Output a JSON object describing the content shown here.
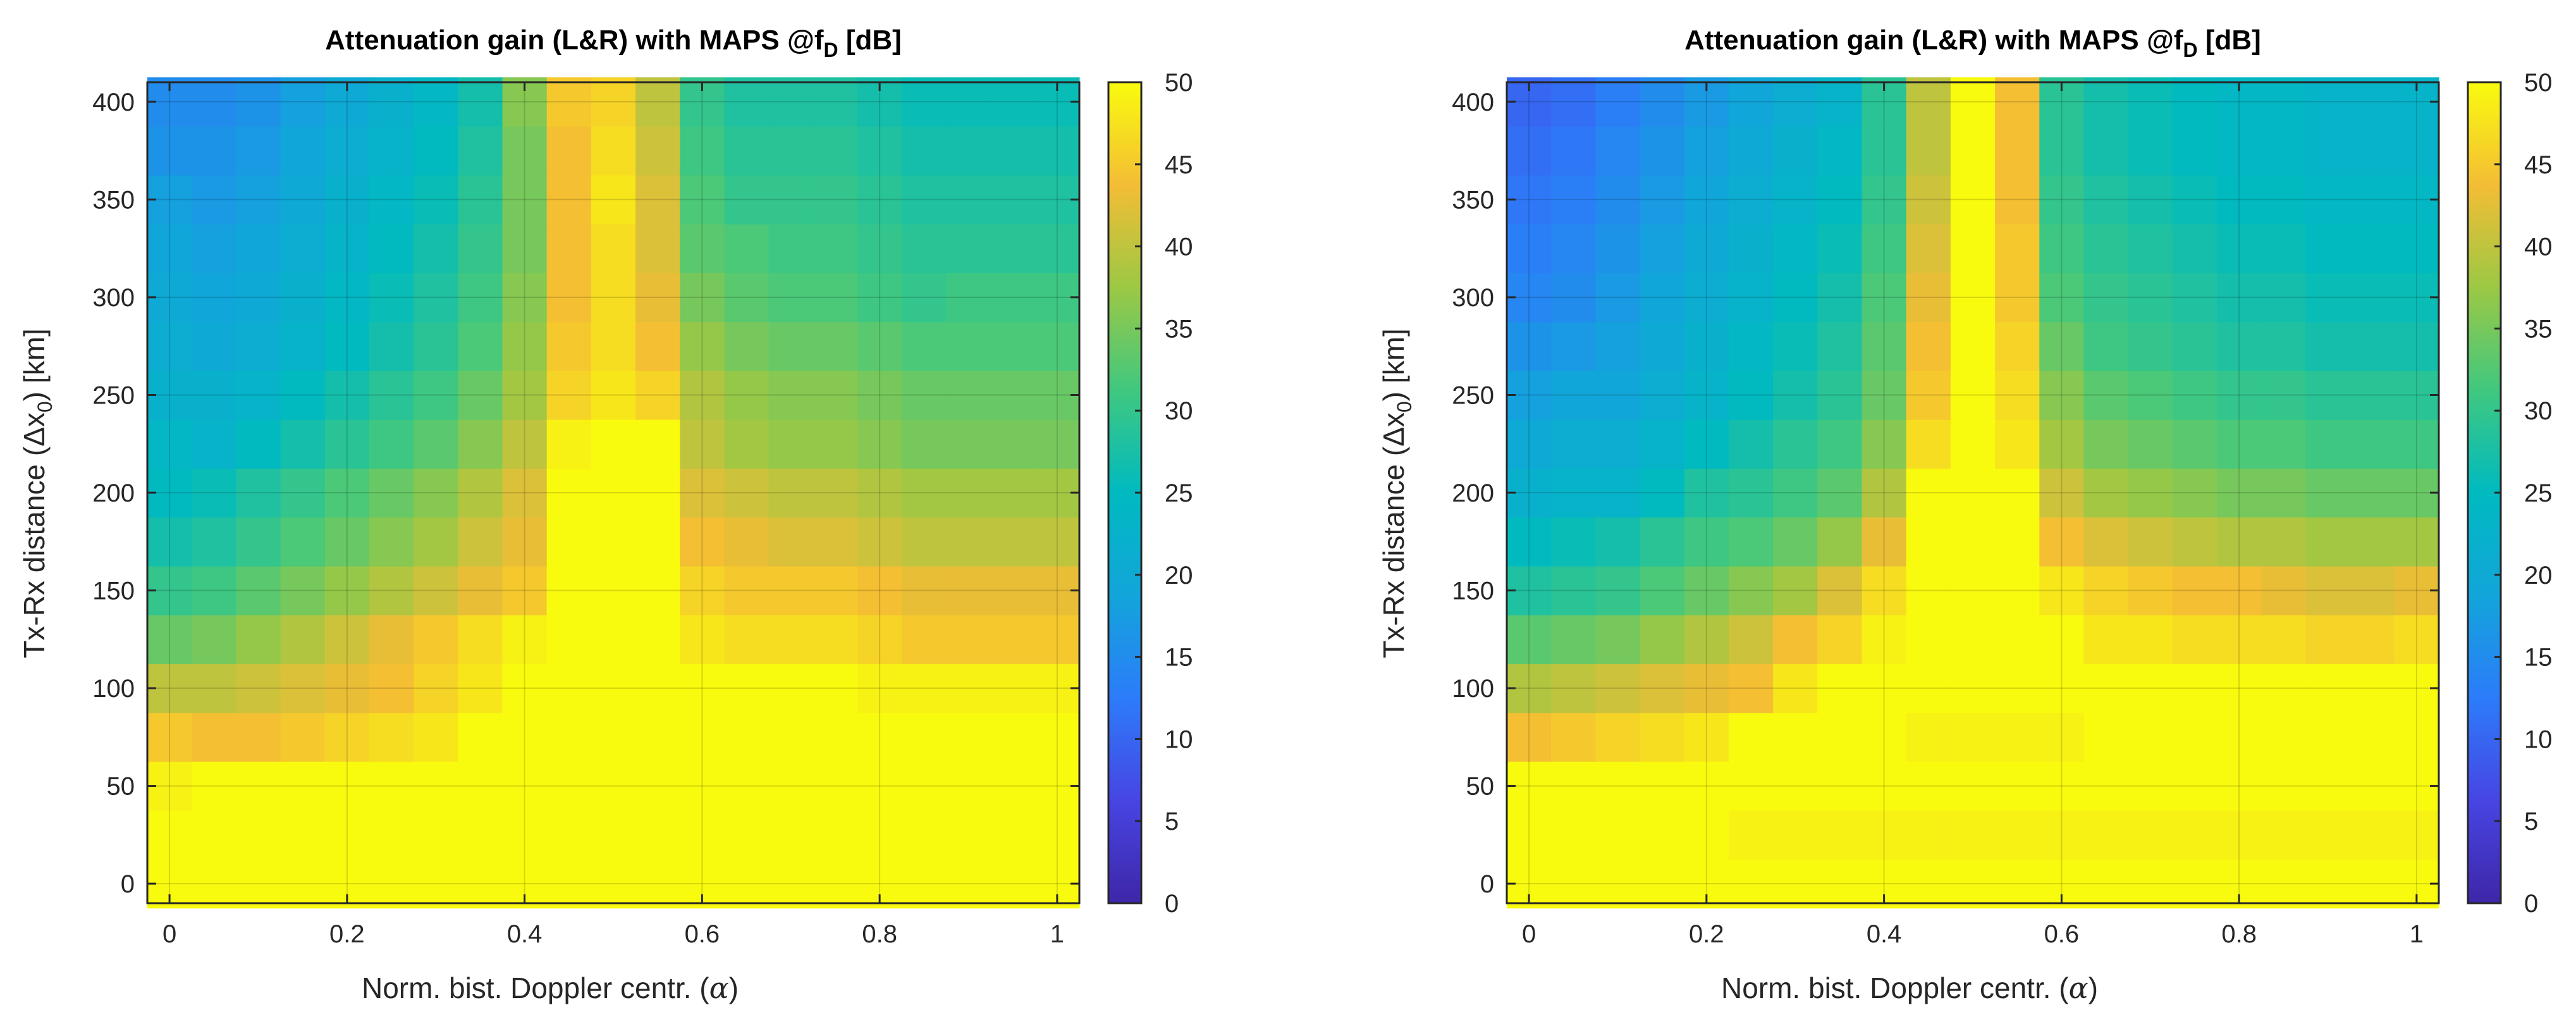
{
  "chart_data": [
    {
      "type": "heatmap",
      "title_main": "Attenuation gain (L&R) with MAPS @f",
      "title_sub": "D",
      "title_tail": " [dB]",
      "xlabel_text": "Norm. bist. Doppler centr. (",
      "xlabel_sym": "α",
      "xlabel_close": ")",
      "ylabel_text": "Tx-Rx distance (Δx",
      "ylabel_sub": "0",
      "ylabel_close": ") [km]",
      "xticks": [
        0,
        0.2,
        0.4,
        0.6,
        0.8,
        1
      ],
      "xtick_labels": [
        "0",
        "0.2",
        "0.4",
        "0.6",
        "0.8",
        "1"
      ],
      "yticks": [
        0,
        50,
        100,
        150,
        200,
        250,
        300,
        350,
        400
      ],
      "ytick_labels": [
        "0",
        "50",
        "100",
        "150",
        "200",
        "250",
        "300",
        "350",
        "400"
      ],
      "xlim": [
        -0.025,
        1.025
      ],
      "ylim": [
        -10,
        410
      ],
      "x_step": 0.05,
      "y_step": 25,
      "colorbar_ticks": [
        "0",
        "5",
        "10",
        "15",
        "20",
        "25",
        "30",
        "35",
        "40",
        "45",
        "50"
      ],
      "clim": [
        0,
        50
      ],
      "grid": true,
      "colormap": "parula",
      "values_rows_y_ascending": [
        [
          50,
          50,
          50,
          50,
          50,
          50,
          50,
          50,
          50,
          50,
          50,
          50,
          50,
          50,
          50,
          50,
          50,
          50,
          50,
          50,
          50
        ],
        [
          50,
          50,
          50,
          50,
          50,
          50,
          50,
          50,
          50,
          50,
          50,
          50,
          50,
          50,
          50,
          50,
          50,
          50,
          50,
          50,
          50
        ],
        [
          49,
          50,
          50,
          50,
          50,
          50,
          50,
          50,
          50,
          50,
          50,
          50,
          50,
          50,
          50,
          50,
          50,
          50,
          50,
          50,
          50
        ],
        [
          45,
          44,
          44,
          45,
          46,
          47,
          48,
          50,
          50,
          50,
          50,
          50,
          50,
          50,
          50,
          50,
          50,
          50,
          50,
          50,
          50
        ],
        [
          40,
          40,
          41,
          42,
          43,
          44,
          46,
          48,
          50,
          50,
          50,
          50,
          50,
          50,
          50,
          50,
          49,
          49,
          49,
          49,
          49
        ],
        [
          34,
          35,
          37,
          39,
          41,
          43,
          45,
          47,
          49,
          50,
          50,
          50,
          48,
          47,
          47,
          47,
          46,
          45,
          45,
          45,
          45
        ],
        [
          30,
          31,
          33,
          35,
          37,
          39,
          41,
          43,
          45,
          50,
          50,
          50,
          46,
          45,
          45,
          45,
          44,
          43,
          43,
          43,
          43
        ],
        [
          27,
          28,
          30,
          32,
          34,
          36,
          38,
          41,
          43,
          50,
          50,
          50,
          44,
          43,
          42,
          42,
          41,
          40,
          40,
          40,
          40
        ],
        [
          25,
          26,
          28,
          30,
          32,
          34,
          36,
          39,
          42,
          50,
          50,
          50,
          42,
          41,
          40,
          40,
          39,
          38,
          38,
          38,
          38
        ],
        [
          24,
          23,
          25,
          27,
          29,
          31,
          33,
          36,
          40,
          49,
          50,
          50,
          40,
          38,
          37,
          37,
          36,
          35,
          35,
          35,
          35
        ],
        [
          22,
          22,
          23,
          25,
          27,
          29,
          31,
          34,
          38,
          46,
          48,
          46,
          39,
          37,
          36,
          36,
          35,
          34,
          34,
          34,
          34
        ],
        [
          21,
          20,
          21,
          23,
          25,
          27,
          29,
          32,
          37,
          45,
          47,
          44,
          37,
          35,
          34,
          34,
          33,
          32,
          32,
          32,
          32
        ],
        [
          20,
          19,
          20,
          22,
          24,
          26,
          28,
          31,
          36,
          44,
          47,
          43,
          35,
          33,
          32,
          32,
          31,
          30,
          31,
          31,
          31
        ],
        [
          19,
          18,
          19,
          21,
          23,
          25,
          27,
          30,
          35,
          44,
          47,
          42,
          33,
          32,
          31,
          31,
          30,
          29,
          29,
          29,
          29
        ],
        [
          18,
          17,
          18,
          20,
          22,
          24,
          26,
          29,
          35,
          44,
          48,
          42,
          32,
          30,
          30,
          30,
          29,
          28,
          28,
          28,
          28
        ],
        [
          16,
          16,
          17,
          19,
          21,
          23,
          25,
          28,
          35,
          44,
          47,
          41,
          31,
          29,
          29,
          29,
          28,
          27,
          27,
          27,
          27
        ],
        [
          15,
          15,
          16,
          18,
          20,
          22,
          24,
          27,
          36,
          45,
          46,
          40,
          30,
          28,
          28,
          28,
          27,
          26,
          26,
          26,
          26
        ]
      ]
    },
    {
      "type": "heatmap",
      "title_main": "Attenuation gain (L&R) with MAPS @f",
      "title_sub": "D",
      "title_tail": " [dB]",
      "xlabel_text": "Norm. bist. Doppler centr. (",
      "xlabel_sym": "α",
      "xlabel_close": ")",
      "ylabel_text": "Tx-Rx distance (Δx",
      "ylabel_sub": "0",
      "ylabel_close": ") [km]",
      "xticks": [
        0,
        0.2,
        0.4,
        0.6,
        0.8,
        1
      ],
      "xtick_labels": [
        "0",
        "0.2",
        "0.4",
        "0.6",
        "0.8",
        "1"
      ],
      "yticks": [
        0,
        50,
        100,
        150,
        200,
        250,
        300,
        350,
        400
      ],
      "ytick_labels": [
        "0",
        "50",
        "100",
        "150",
        "200",
        "250",
        "300",
        "350",
        "400"
      ],
      "xlim": [
        -0.025,
        1.025
      ],
      "ylim": [
        -10,
        410
      ],
      "x_step": 0.05,
      "y_step": 25,
      "colorbar_ticks": [
        "0",
        "5",
        "10",
        "15",
        "20",
        "25",
        "30",
        "35",
        "40",
        "45",
        "50"
      ],
      "clim": [
        0,
        50
      ],
      "grid": true,
      "colormap": "parula",
      "values_rows_y_ascending": [
        [
          50,
          50,
          50,
          50,
          50,
          50,
          50,
          50,
          50,
          50,
          50,
          50,
          50,
          50,
          50,
          50,
          50,
          50,
          50,
          50,
          50
        ],
        [
          50,
          50,
          50,
          50,
          50,
          49,
          49,
          49,
          49,
          49,
          49,
          49,
          49,
          49,
          49,
          49,
          49,
          49,
          49,
          49,
          49
        ],
        [
          50,
          50,
          50,
          50,
          50,
          50,
          50,
          50,
          50,
          50,
          50,
          50,
          50,
          50,
          50,
          50,
          50,
          50,
          50,
          50,
          50
        ],
        [
          44,
          45,
          46,
          47,
          48,
          50,
          50,
          50,
          50,
          49,
          49,
          49,
          49,
          50,
          50,
          50,
          50,
          50,
          50,
          50,
          50
        ],
        [
          39,
          40,
          41,
          42,
          43,
          44,
          48,
          50,
          50,
          50,
          50,
          50,
          50,
          50,
          50,
          50,
          50,
          50,
          50,
          50,
          50
        ],
        [
          33,
          34,
          35,
          37,
          39,
          41,
          44,
          46,
          49,
          50,
          50,
          50,
          50,
          48,
          48,
          47,
          47,
          47,
          46,
          46,
          47
        ],
        [
          28,
          29,
          30,
          32,
          34,
          36,
          38,
          42,
          47,
          50,
          50,
          50,
          48,
          46,
          45,
          44,
          44,
          43,
          42,
          42,
          43
        ],
        [
          25,
          26,
          27,
          29,
          31,
          32,
          34,
          37,
          43,
          50,
          50,
          50,
          44,
          42,
          41,
          40,
          39,
          39,
          38,
          38,
          38
        ],
        [
          22,
          23,
          23,
          25,
          28,
          29,
          31,
          33,
          39,
          50,
          50,
          50,
          41,
          38,
          37,
          36,
          35,
          35,
          34,
          34,
          34
        ],
        [
          20,
          21,
          21,
          23,
          25,
          27,
          29,
          31,
          36,
          47,
          50,
          48,
          38,
          35,
          34,
          33,
          32,
          32,
          31,
          31,
          31
        ],
        [
          18,
          19,
          19,
          21,
          23,
          25,
          27,
          29,
          34,
          45,
          50,
          47,
          36,
          33,
          32,
          31,
          30,
          30,
          29,
          29,
          29
        ],
        [
          16,
          17,
          18,
          20,
          22,
          24,
          26,
          28,
          33,
          44,
          50,
          46,
          34,
          31,
          30,
          29,
          28,
          28,
          27,
          27,
          27
        ],
        [
          14,
          15,
          17,
          19,
          21,
          23,
          25,
          27,
          32,
          43,
          50,
          45,
          32,
          30,
          29,
          28,
          27,
          27,
          26,
          26,
          26
        ],
        [
          13,
          14,
          16,
          18,
          20,
          22,
          24,
          26,
          31,
          42,
          50,
          45,
          31,
          29,
          28,
          27,
          26,
          26,
          25,
          25,
          25
        ],
        [
          12,
          13,
          15,
          17,
          19,
          21,
          23,
          25,
          30,
          41,
          50,
          44,
          30,
          28,
          27,
          26,
          25,
          25,
          24,
          24,
          24
        ],
        [
          11,
          12,
          14,
          16,
          18,
          20,
          22,
          24,
          29,
          40,
          50,
          44,
          29,
          27,
          26,
          25,
          24,
          24,
          23,
          23,
          23
        ],
        [
          10,
          11,
          13,
          15,
          17,
          19,
          21,
          23,
          29,
          40,
          50,
          44,
          29,
          27,
          26,
          25,
          24,
          24,
          23,
          23,
          23
        ]
      ]
    }
  ]
}
